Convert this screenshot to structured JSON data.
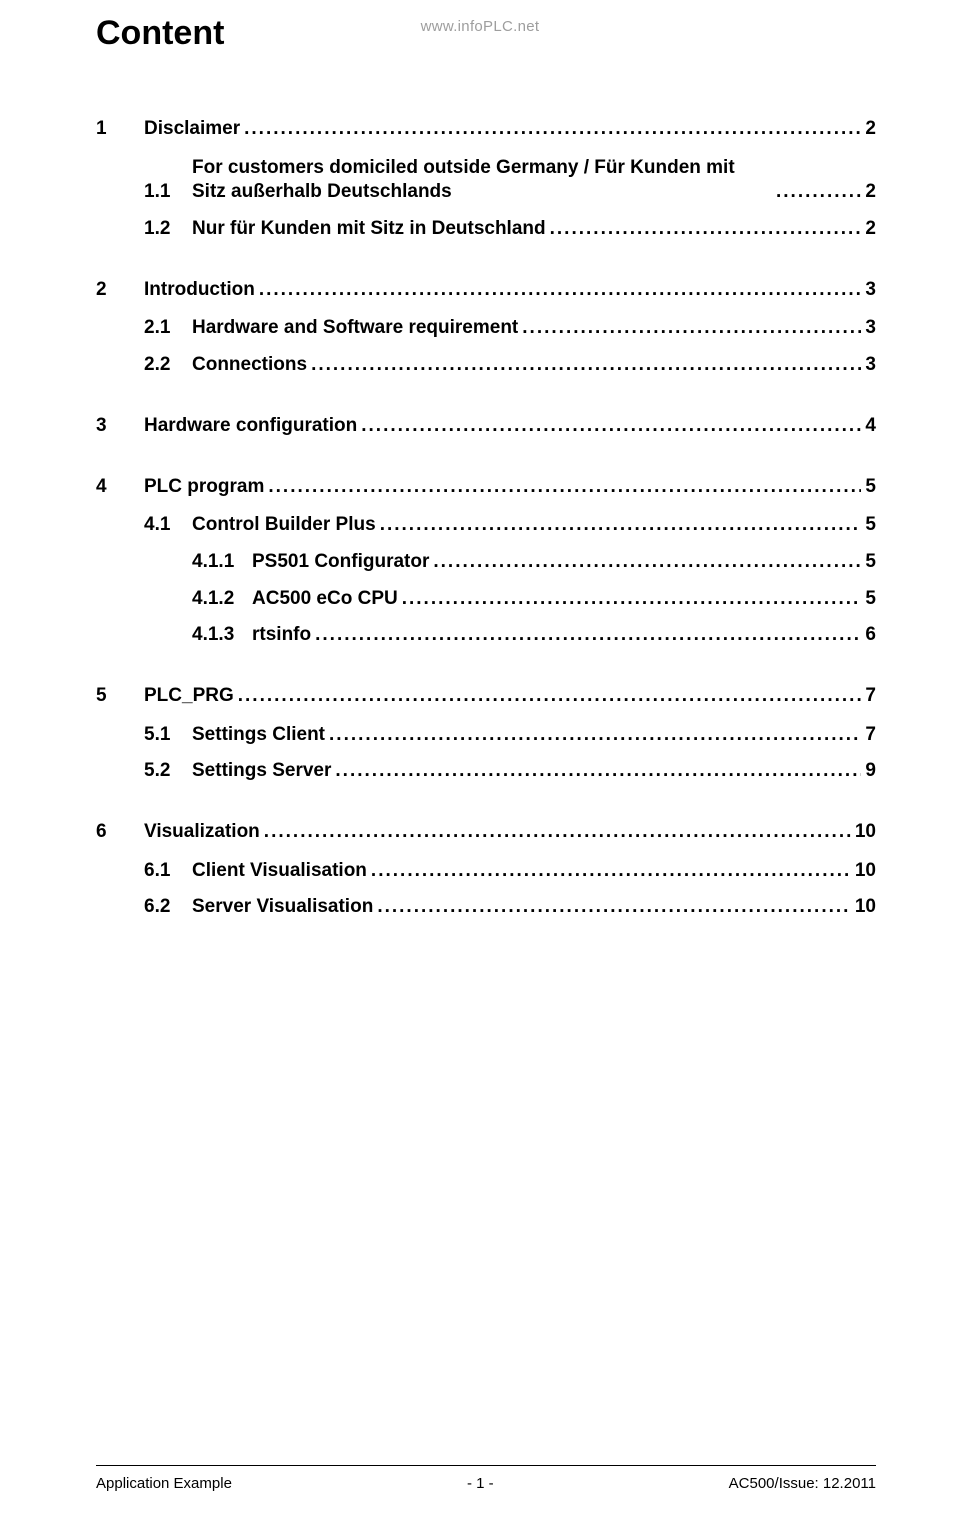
{
  "watermark": "www.infoPLC.net",
  "title": "Content",
  "entries": [
    {
      "level": 0,
      "num": "1",
      "label": "Disclaimer",
      "page": "2",
      "gapAfter": "sub"
    },
    {
      "level": 1,
      "num": "1.1",
      "label": "For customers domiciled outside Germany / Für Kunden mit Sitz außerhalb Deutschlands",
      "page": "2",
      "wrap": true,
      "gapAfter": "sub2"
    },
    {
      "level": 1,
      "num": "1.2",
      "label": "Nur für Kunden mit Sitz in Deutschland",
      "page": "2",
      "gapAfter": "section"
    },
    {
      "level": 0,
      "num": "2",
      "label": "Introduction",
      "page": "3",
      "gapAfter": "sub"
    },
    {
      "level": 1,
      "num": "2.1",
      "label": "Hardware and Software requirement",
      "page": "3",
      "gapAfter": "sub2"
    },
    {
      "level": 1,
      "num": "2.2",
      "label": "Connections",
      "page": "3",
      "gapAfter": "section"
    },
    {
      "level": 0,
      "num": "3",
      "label": "Hardware configuration",
      "page": "4",
      "gapAfter": "section"
    },
    {
      "level": 0,
      "num": "4",
      "label": "PLC program",
      "page": "5",
      "gapAfter": "sub"
    },
    {
      "level": 1,
      "num": "4.1",
      "label": "Control Builder Plus",
      "page": "5",
      "gapAfter": "sub2"
    },
    {
      "level": 2,
      "num": "4.1.1",
      "label": "PS501 Configurator",
      "page": "5",
      "gapAfter": "sub2"
    },
    {
      "level": 2,
      "num": "4.1.2",
      "label": "AC500 eCo CPU",
      "page": "5",
      "gapAfter": "sub2"
    },
    {
      "level": 2,
      "num": "4.1.3",
      "label": "rtsinfo",
      "page": "6",
      "gapAfter": "section"
    },
    {
      "level": 0,
      "num": "5",
      "label": "PLC_PRG",
      "page": "7",
      "gapAfter": "sub"
    },
    {
      "level": 1,
      "num": "5.1",
      "label": "Settings Client",
      "page": "7",
      "gapAfter": "sub2"
    },
    {
      "level": 1,
      "num": "5.2",
      "label": "Settings Server",
      "page": "9",
      "gapAfter": "section"
    },
    {
      "level": 0,
      "num": "6",
      "label": "Visualization",
      "page": "10",
      "gapAfter": "sub"
    },
    {
      "level": 1,
      "num": "6.1",
      "label": "Client Visualisation",
      "page": "10",
      "gapAfter": "sub2"
    },
    {
      "level": 1,
      "num": "6.2",
      "label": "Server Visualisation",
      "page": "10",
      "gapAfter": "none"
    }
  ],
  "footer": {
    "left": "Application Example",
    "center": "- 1 -",
    "right": "AC500/Issue: 12.2011"
  }
}
